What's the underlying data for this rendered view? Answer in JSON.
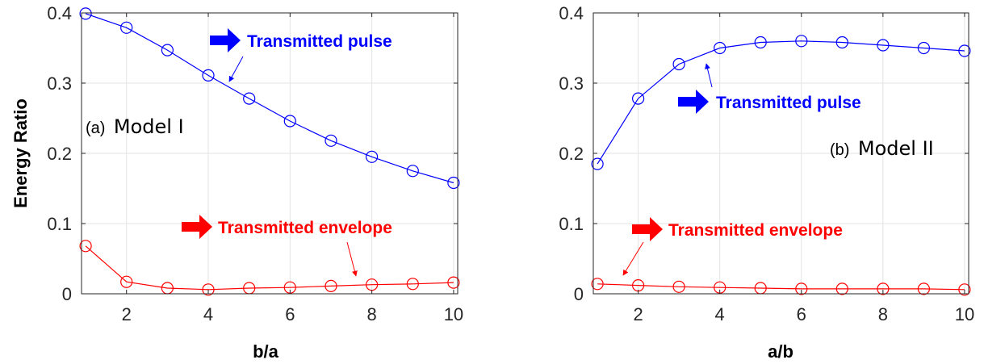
{
  "chart_data": [
    {
      "type": "line",
      "panel": "(a)",
      "model": "Model I",
      "xlabel": "b/a",
      "ylabel": "Energy Ratio",
      "xlim": [
        0.9,
        10.1
      ],
      "ylim": [
        0,
        0.4
      ],
      "xticks": [
        2,
        4,
        6,
        8,
        10
      ],
      "yticks": [
        0,
        0.1,
        0.2,
        0.3,
        0.4
      ],
      "x": [
        1,
        2,
        3,
        4,
        5,
        6,
        7,
        8,
        9,
        10
      ],
      "grid": true,
      "series": [
        {
          "name": "Transmitted pulse",
          "color": "#0000ff",
          "values": [
            0.399,
            0.379,
            0.347,
            0.311,
            0.278,
            0.246,
            0.218,
            0.195,
            0.175,
            0.158
          ]
        },
        {
          "name": "Transmitted envelope",
          "color": "#ff0000",
          "values": [
            0.068,
            0.017,
            0.008,
            0.006,
            0.008,
            0.009,
            0.011,
            0.013,
            0.014,
            0.016
          ]
        }
      ]
    },
    {
      "type": "line",
      "panel": "(b)",
      "model": "Model II",
      "xlabel": "a/b",
      "ylabel": "",
      "xlim": [
        0.9,
        10.1
      ],
      "ylim": [
        0,
        0.4
      ],
      "xticks": [
        2,
        4,
        6,
        8,
        10
      ],
      "yticks": [
        0,
        0.1,
        0.2,
        0.3,
        0.4
      ],
      "x": [
        1,
        2,
        3,
        4,
        5,
        6,
        7,
        8,
        9,
        10
      ],
      "grid": true,
      "series": [
        {
          "name": "Transmitted pulse",
          "color": "#0000ff",
          "values": [
            0.185,
            0.278,
            0.327,
            0.35,
            0.358,
            0.36,
            0.358,
            0.354,
            0.35,
            0.346
          ]
        },
        {
          "name": "Transmitted envelope",
          "color": "#ff0000",
          "values": [
            0.014,
            0.012,
            0.01,
            0.009,
            0.008,
            0.007,
            0.007,
            0.007,
            0.007,
            0.006
          ]
        }
      ]
    }
  ]
}
